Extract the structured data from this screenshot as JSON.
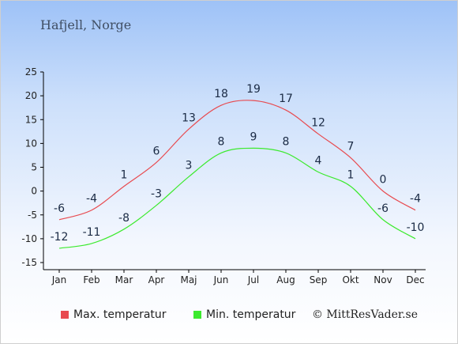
{
  "title": "Hafjell, Norge",
  "credit": "© MittResVader.se",
  "colors": {
    "max": "#e84a4f",
    "min": "#3cea2e",
    "axis": "#000000",
    "label": "#1a2a44"
  },
  "chart_data": {
    "type": "line",
    "categories": [
      "Jan",
      "Feb",
      "Mar",
      "Apr",
      "Maj",
      "Jun",
      "Jul",
      "Aug",
      "Sep",
      "Okt",
      "Nov",
      "Dec"
    ],
    "series": [
      {
        "name": "Max. temperatur",
        "values": [
          -6,
          -4,
          1,
          6,
          13,
          18,
          19,
          17,
          12,
          7,
          0,
          -4
        ]
      },
      {
        "name": "Min. temperatur",
        "values": [
          -12,
          -11,
          -8,
          -3,
          3,
          8,
          9,
          8,
          4,
          1,
          -6,
          -10
        ]
      }
    ],
    "ylim": [
      -15,
      25
    ],
    "yticks": [
      25,
      20,
      15,
      10,
      5,
      0,
      -5,
      -10,
      -15
    ],
    "grid": false,
    "legend": "bottom"
  }
}
